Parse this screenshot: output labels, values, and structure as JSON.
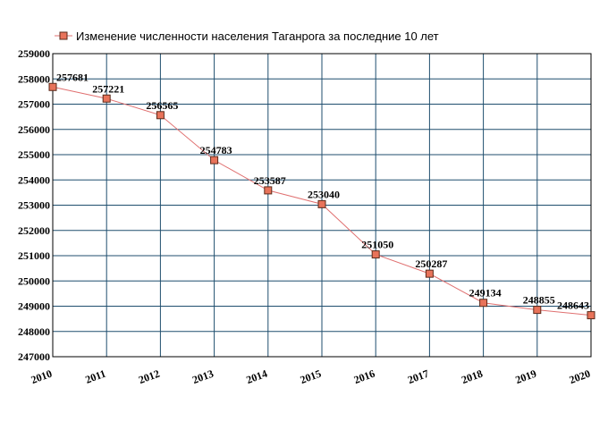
{
  "chart_data": {
    "type": "line",
    "title": "",
    "legend_position": "top",
    "grid": true,
    "colors": {
      "line": "#e07070",
      "marker_fill": "#e8735a",
      "marker_stroke": "#5a2a1a",
      "grid": "#1f4e6e",
      "axis": "#000000"
    },
    "x": [
      "2010",
      "2011",
      "2012",
      "2013",
      "2014",
      "2015",
      "2016",
      "2017",
      "2018",
      "2019",
      "2020"
    ],
    "series": [
      {
        "name": "Изменение численности населения Таганрога за последние 10 лет",
        "values": [
          257681,
          257221,
          256565,
          254783,
          253587,
          253040,
          251050,
          250287,
          249134,
          248855,
          248643
        ],
        "labels": [
          "257681",
          "257221",
          "256565",
          "254783",
          "253587",
          "253040",
          "251050",
          "250287",
          "249134",
          "248855",
          "248643"
        ]
      }
    ],
    "ylim": [
      247000,
      259000
    ],
    "yticks": [
      "247000",
      "248000",
      "249000",
      "250000",
      "251000",
      "252000",
      "253000",
      "254000",
      "255000",
      "256000",
      "257000",
      "258000",
      "259000"
    ]
  }
}
